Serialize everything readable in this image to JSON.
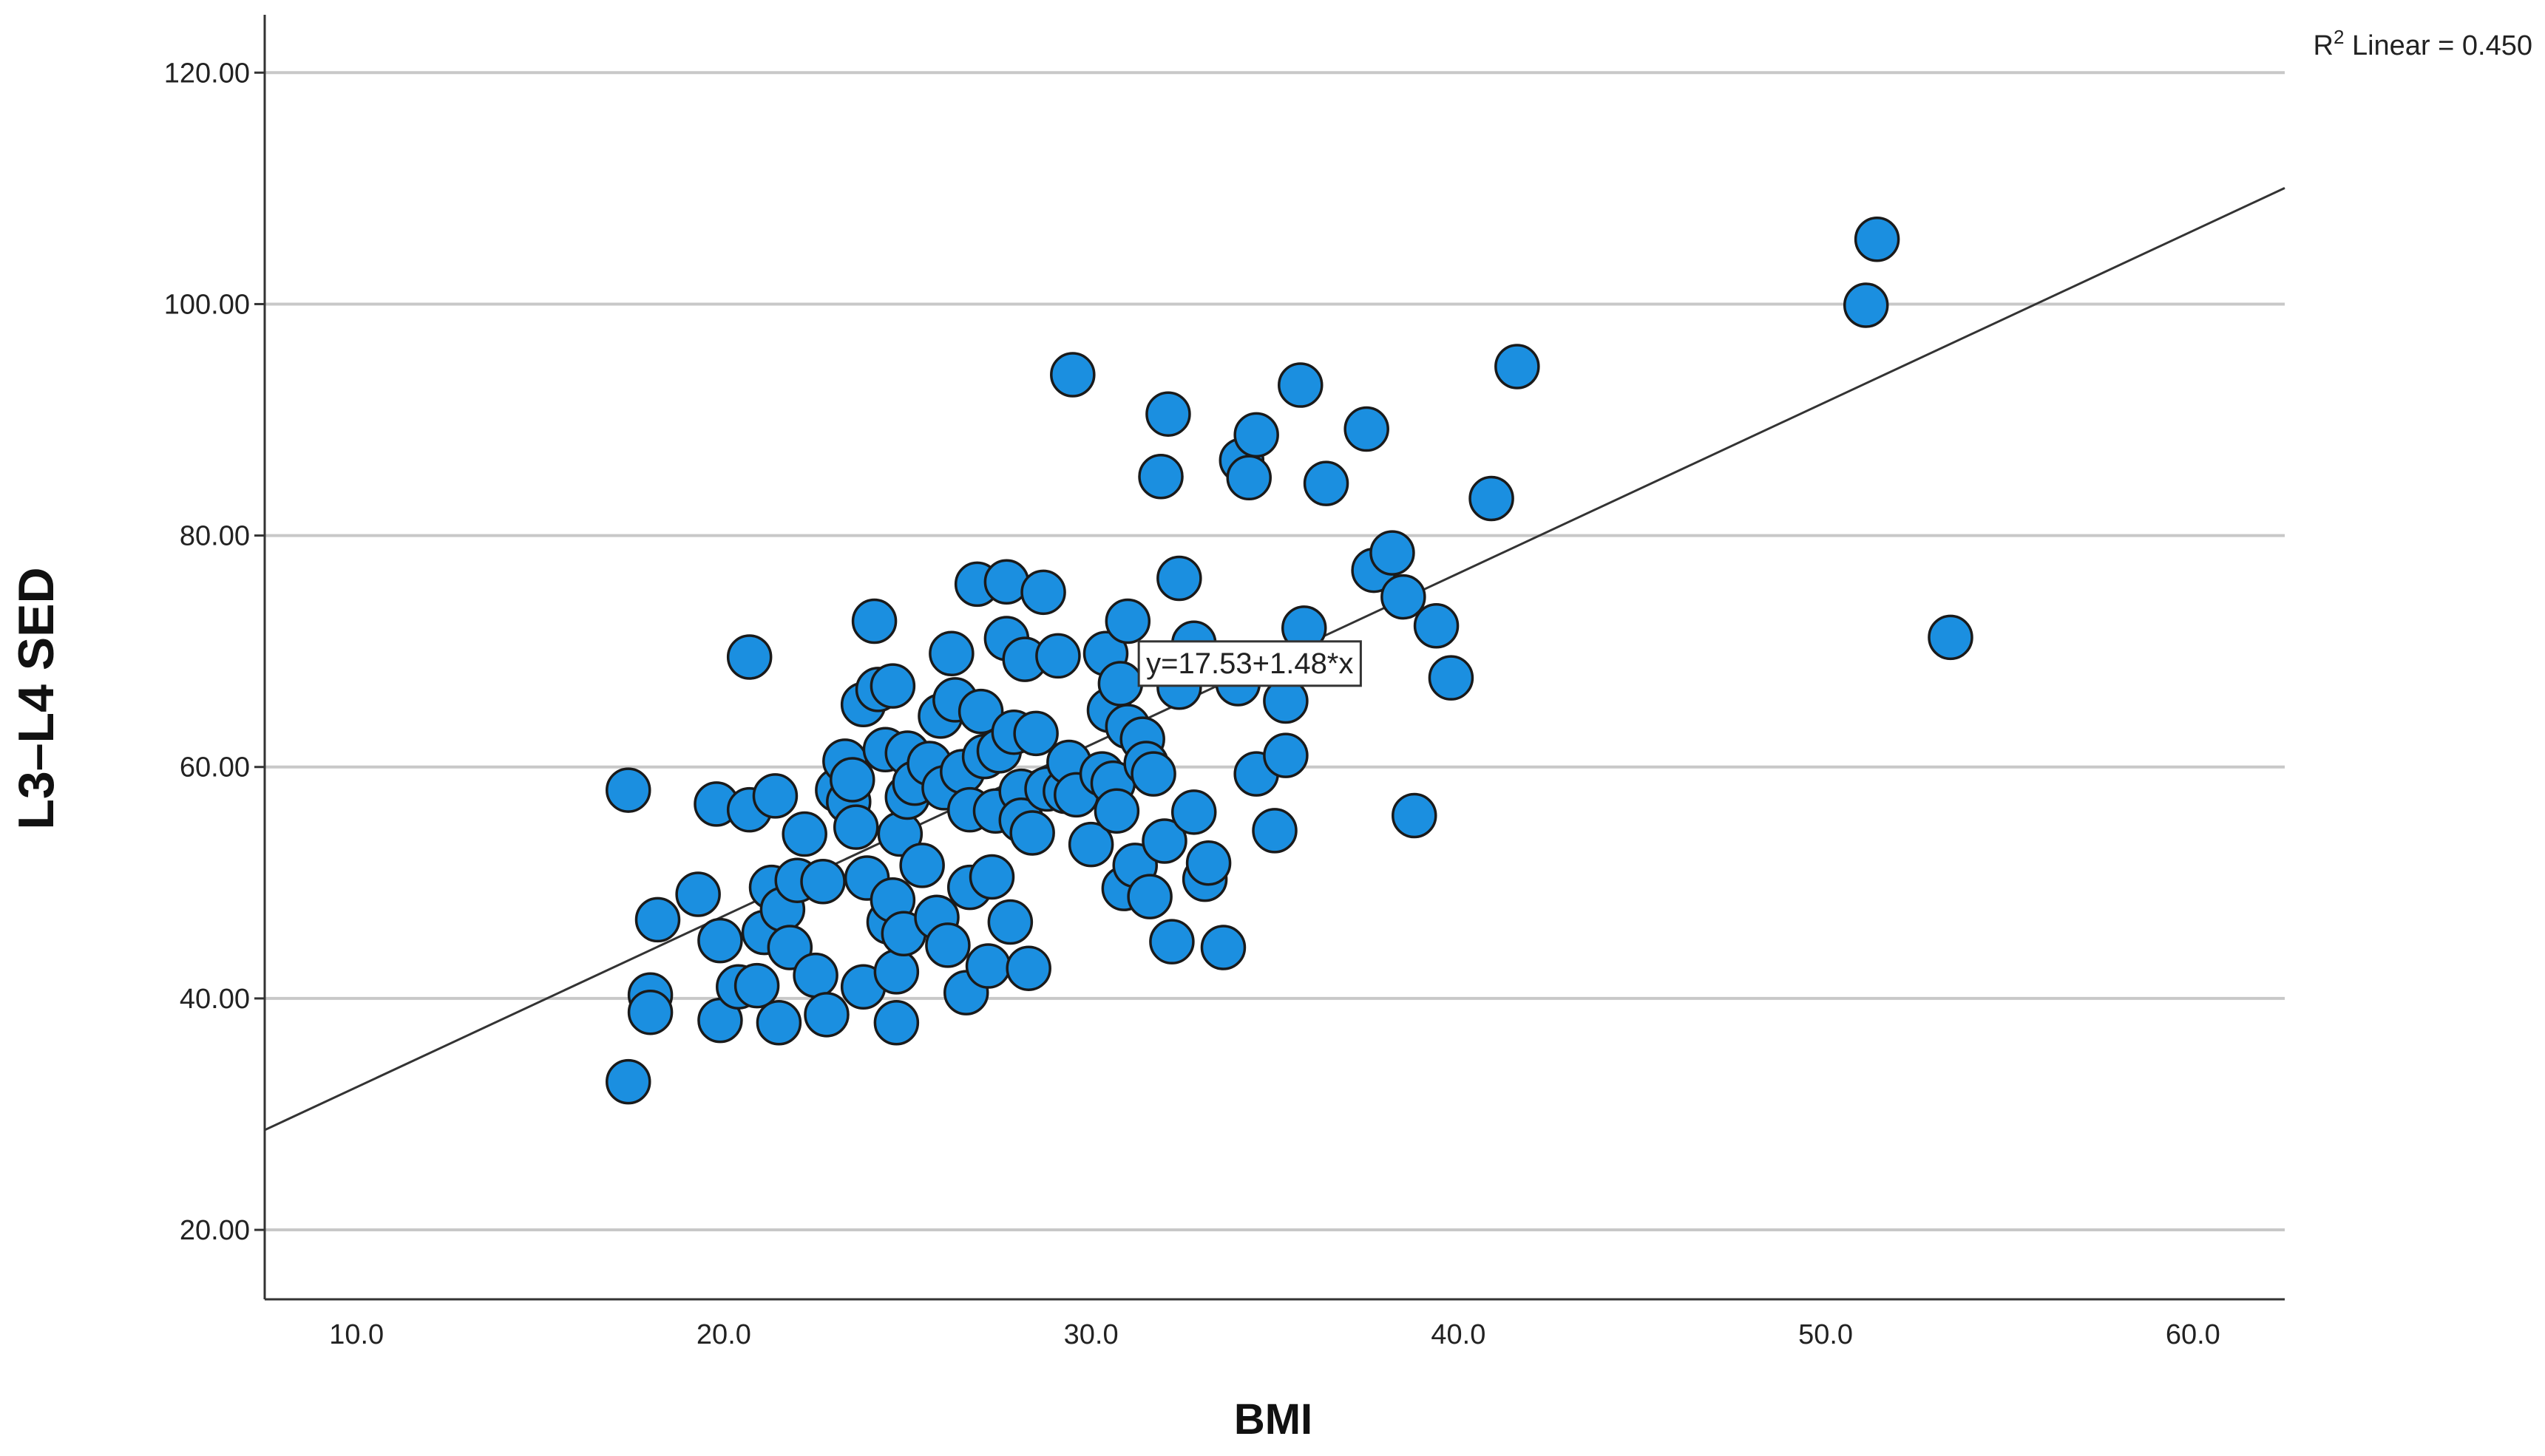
{
  "chart_data": {
    "type": "scatter",
    "xlabel": "BMI",
    "ylabel": "L3–L4 SED",
    "xlim": [
      7.5,
      62.5
    ],
    "ylim": [
      14.0,
      125.0
    ],
    "x_ticks": [
      "10.0",
      "20.0",
      "30.0",
      "40.0",
      "50.0",
      "60.0"
    ],
    "y_ticks": [
      "20.00",
      "40.00",
      "60.00",
      "80.00",
      "100.00",
      "120.00"
    ],
    "grid": "horizontal",
    "r2_annotation": {
      "prefix": "R",
      "sup": "2",
      "suffix": " Linear = 0.450"
    },
    "fit_label": "y=17.53+1.48*x",
    "fit_label_anchor": {
      "x": 31.5,
      "y": 69.0
    },
    "fit_line": {
      "intercept": 17.53,
      "slope": 1.48
    },
    "marker_color": "#1b8fe0",
    "marker_edge": "#1a1a1a",
    "points": [
      [
        17.4,
        32.8
      ],
      [
        17.4,
        58.0
      ],
      [
        18.0,
        40.3
      ],
      [
        18.0,
        38.8
      ],
      [
        18.2,
        46.8
      ],
      [
        19.3,
        49.0
      ],
      [
        19.8,
        56.8
      ],
      [
        19.9,
        38.1
      ],
      [
        19.9,
        45.0
      ],
      [
        20.4,
        41.0
      ],
      [
        20.7,
        56.3
      ],
      [
        20.7,
        69.5
      ],
      [
        20.9,
        41.1
      ],
      [
        21.1,
        45.7
      ],
      [
        21.3,
        49.6
      ],
      [
        21.4,
        57.5
      ],
      [
        21.5,
        37.9
      ],
      [
        21.6,
        47.7
      ],
      [
        21.8,
        44.4
      ],
      [
        22.0,
        50.2
      ],
      [
        22.2,
        54.2
      ],
      [
        22.5,
        42.0
      ],
      [
        22.7,
        50.1
      ],
      [
        22.8,
        38.6
      ],
      [
        23.1,
        58.0
      ],
      [
        23.3,
        60.5
      ],
      [
        23.4,
        57.0
      ],
      [
        23.5,
        58.9
      ],
      [
        23.6,
        54.8
      ],
      [
        23.8,
        65.4
      ],
      [
        23.8,
        41.0
      ],
      [
        23.9,
        50.4
      ],
      [
        24.1,
        72.6
      ],
      [
        24.2,
        66.7
      ],
      [
        24.4,
        61.5
      ],
      [
        24.5,
        46.6
      ],
      [
        24.6,
        48.5
      ],
      [
        24.6,
        67.0
      ],
      [
        24.7,
        37.9
      ],
      [
        24.7,
        42.3
      ],
      [
        24.8,
        54.2
      ],
      [
        24.9,
        45.6
      ],
      [
        25.0,
        61.2
      ],
      [
        25.0,
        57.4
      ],
      [
        25.2,
        58.6
      ],
      [
        25.4,
        51.5
      ],
      [
        25.6,
        60.3
      ],
      [
        25.8,
        47.0
      ],
      [
        25.9,
        64.4
      ],
      [
        26.0,
        58.2
      ],
      [
        26.1,
        44.6
      ],
      [
        26.2,
        69.8
      ],
      [
        26.3,
        65.8
      ],
      [
        26.5,
        59.6
      ],
      [
        26.6,
        40.5
      ],
      [
        26.7,
        49.6
      ],
      [
        26.7,
        56.3
      ],
      [
        26.9,
        75.8
      ],
      [
        27.0,
        64.8
      ],
      [
        27.1,
        60.9
      ],
      [
        27.2,
        42.8
      ],
      [
        27.3,
        50.5
      ],
      [
        27.4,
        56.2
      ],
      [
        27.5,
        61.4
      ],
      [
        27.7,
        76.0
      ],
      [
        27.7,
        71.1
      ],
      [
        27.8,
        46.6
      ],
      [
        27.9,
        63.0
      ],
      [
        28.1,
        57.9
      ],
      [
        28.1,
        55.4
      ],
      [
        28.2,
        69.3
      ],
      [
        28.3,
        42.6
      ],
      [
        28.4,
        54.3
      ],
      [
        28.5,
        62.9
      ],
      [
        28.7,
        75.1
      ],
      [
        28.8,
        58.1
      ],
      [
        29.1,
        69.6
      ],
      [
        29.3,
        57.9
      ],
      [
        29.4,
        60.4
      ],
      [
        29.5,
        93.9
      ],
      [
        29.6,
        57.6
      ],
      [
        30.0,
        53.3
      ],
      [
        30.3,
        59.4
      ],
      [
        30.4,
        69.8
      ],
      [
        30.5,
        64.9
      ],
      [
        30.6,
        58.6
      ],
      [
        30.7,
        56.2
      ],
      [
        30.8,
        67.2
      ],
      [
        30.9,
        49.5
      ],
      [
        31.0,
        63.5
      ],
      [
        31.0,
        72.6
      ],
      [
        31.2,
        51.5
      ],
      [
        31.4,
        62.4
      ],
      [
        31.5,
        60.3
      ],
      [
        31.6,
        48.8
      ],
      [
        31.7,
        59.4
      ],
      [
        31.9,
        85.1
      ],
      [
        32.0,
        53.6
      ],
      [
        32.1,
        90.5
      ],
      [
        32.2,
        44.9
      ],
      [
        32.4,
        76.3
      ],
      [
        32.4,
        66.9
      ],
      [
        32.8,
        56.1
      ],
      [
        32.8,
        70.7
      ],
      [
        33.1,
        50.3
      ],
      [
        33.2,
        51.7
      ],
      [
        33.6,
        44.4
      ],
      [
        34.0,
        67.2
      ],
      [
        34.1,
        86.5
      ],
      [
        34.3,
        85.0
      ],
      [
        34.5,
        88.7
      ],
      [
        34.5,
        59.4
      ],
      [
        35.0,
        54.5
      ],
      [
        35.3,
        65.7
      ],
      [
        35.3,
        61.0
      ],
      [
        35.7,
        93.0
      ],
      [
        35.8,
        72.0
      ],
      [
        36.4,
        84.5
      ],
      [
        37.5,
        89.2
      ],
      [
        37.7,
        77.0
      ],
      [
        38.2,
        78.5
      ],
      [
        38.5,
        74.7
      ],
      [
        38.8,
        55.8
      ],
      [
        39.4,
        72.2
      ],
      [
        39.8,
        67.7
      ],
      [
        40.9,
        83.2
      ],
      [
        41.6,
        94.6
      ],
      [
        51.1,
        99.9
      ],
      [
        51.4,
        105.6
      ],
      [
        53.4,
        71.2
      ]
    ]
  }
}
